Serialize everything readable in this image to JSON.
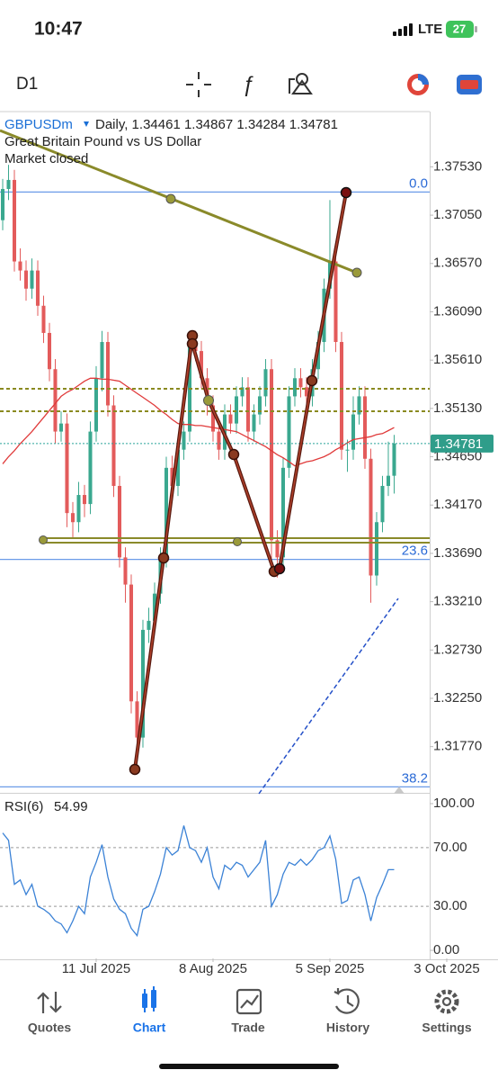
{
  "status_bar": {
    "time": "10:47",
    "network": "LTE",
    "battery": "27"
  },
  "toolbar": {
    "timeframe": "D1"
  },
  "chart_data": [
    {
      "type": "candlestick",
      "symbol": "GBPUSDm",
      "info": "Daily, 1.34461 1.34867 1.34284 1.34781",
      "description": "Great Britain Pound vs US Dollar",
      "status": "Market closed",
      "up_color": "#3aa88f",
      "down_color": "#e35b5b",
      "open": [
        1.37,
        1.3731,
        1.374,
        1.3659,
        1.365,
        1.3632,
        1.365,
        1.3615,
        1.3588,
        1.3552,
        1.349,
        1.3498,
        1.3409,
        1.34,
        1.3427,
        1.3418,
        1.349,
        1.3543,
        1.3579,
        1.3516,
        1.3436,
        1.3365,
        1.3338,
        1.3222,
        1.3186,
        1.3293,
        1.3302,
        1.3329,
        1.3365,
        1.3454,
        1.3436,
        1.3472,
        1.349,
        1.3579,
        1.357,
        1.3543,
        1.3516,
        1.349,
        1.3472,
        1.3507,
        1.3498,
        1.3525,
        1.3534,
        1.349,
        1.3507,
        1.3525,
        1.3552,
        1.3382,
        1.3365,
        1.3454,
        1.3525,
        1.3543,
        1.3534,
        1.3525,
        1.3552,
        1.3579,
        1.3632,
        1.3659,
        1.3579,
        1.3472,
        1.3472,
        1.3507,
        1.3525,
        1.3463,
        1.3347,
        1.34,
        1.3436,
        1.34461
      ],
      "high": [
        1.3741,
        1.3755,
        1.375,
        1.3672,
        1.366,
        1.3662,
        1.366,
        1.3625,
        1.3598,
        1.3562,
        1.351,
        1.3508,
        1.342,
        1.344,
        1.3437,
        1.35,
        1.3555,
        1.359,
        1.3589,
        1.3526,
        1.3446,
        1.3375,
        1.3348,
        1.3232,
        1.3303,
        1.3315,
        1.334,
        1.3375,
        1.3465,
        1.3466,
        1.3482,
        1.35,
        1.359,
        1.359,
        1.358,
        1.3553,
        1.3526,
        1.35,
        1.3517,
        1.3517,
        1.3535,
        1.3544,
        1.3544,
        1.3517,
        1.3535,
        1.3562,
        1.3562,
        1.3392,
        1.3464,
        1.3535,
        1.3553,
        1.3553,
        1.3544,
        1.3562,
        1.359,
        1.3642,
        1.372,
        1.3669,
        1.3589,
        1.3482,
        1.3525,
        1.3535,
        1.3535,
        1.3473,
        1.341,
        1.3446,
        1.348,
        1.34867
      ],
      "low": [
        1.369,
        1.372,
        1.3649,
        1.364,
        1.362,
        1.3622,
        1.3605,
        1.3578,
        1.354,
        1.3478,
        1.348,
        1.3395,
        1.3385,
        1.339,
        1.3405,
        1.3408,
        1.348,
        1.353,
        1.3505,
        1.3425,
        1.3355,
        1.332,
        1.321,
        1.316,
        1.3176,
        1.328,
        1.3292,
        1.3319,
        1.3355,
        1.3425,
        1.3426,
        1.3462,
        1.348,
        1.356,
        1.3533,
        1.3506,
        1.348,
        1.3462,
        1.3462,
        1.3488,
        1.3488,
        1.3515,
        1.348,
        1.348,
        1.3497,
        1.3515,
        1.335,
        1.3345,
        1.3355,
        1.3444,
        1.3515,
        1.3524,
        1.3515,
        1.3515,
        1.3542,
        1.3569,
        1.3622,
        1.3569,
        1.3462,
        1.345,
        1.3462,
        1.3497,
        1.3453,
        1.332,
        1.3337,
        1.339,
        1.3426,
        1.34284
      ],
      "close": [
        1.3731,
        1.374,
        1.3659,
        1.365,
        1.3632,
        1.365,
        1.3615,
        1.3588,
        1.3552,
        1.349,
        1.3498,
        1.3409,
        1.34,
        1.3427,
        1.3418,
        1.349,
        1.3543,
        1.3579,
        1.3516,
        1.3436,
        1.3365,
        1.3338,
        1.3222,
        1.3186,
        1.3293,
        1.3302,
        1.3329,
        1.3365,
        1.3454,
        1.3436,
        1.3472,
        1.349,
        1.3579,
        1.357,
        1.3543,
        1.3516,
        1.349,
        1.3472,
        1.3507,
        1.3498,
        1.3525,
        1.3534,
        1.349,
        1.3507,
        1.3525,
        1.3552,
        1.3382,
        1.3365,
        1.3454,
        1.3525,
        1.3543,
        1.3534,
        1.3525,
        1.3552,
        1.3579,
        1.3632,
        1.3659,
        1.3579,
        1.3472,
        1.3472,
        1.3507,
        1.3525,
        1.3463,
        1.3347,
        1.34,
        1.3436,
        1.34461,
        1.34781
      ],
      "ma": {
        "color": "#e03a3a",
        "values": [
          1.3458,
          1.3465,
          1.3471,
          1.3478,
          1.3484,
          1.349,
          1.3497,
          1.3504,
          1.3511,
          1.3518,
          1.3525,
          1.3529,
          1.3532,
          1.3536,
          1.354,
          1.3543,
          1.3543,
          1.3542,
          1.3542,
          1.3541,
          1.354,
          1.3536,
          1.3532,
          1.3528,
          1.3524,
          1.352,
          1.3516,
          1.3511,
          1.3507,
          1.3502,
          1.3498,
          1.3497,
          1.3497,
          1.3496,
          1.3496,
          1.3495,
          1.3494,
          1.3493,
          1.3492,
          1.3491,
          1.349,
          1.3487,
          1.3484,
          1.3481,
          1.3478,
          1.3475,
          1.3471,
          1.3467,
          1.3464,
          1.346,
          1.3456,
          1.3458,
          1.346,
          1.3461,
          1.3463,
          1.3465,
          1.3468,
          1.3472,
          1.3475,
          1.3479,
          1.3482,
          1.3483,
          1.3484,
          1.3485,
          1.3487,
          1.3488,
          1.3491,
          1.3494
        ]
      },
      "fib_levels": [
        {
          "label": "0.0",
          "price": 1.3728
        },
        {
          "label": "23.6",
          "price": 1.3363
        },
        {
          "label": "38.2",
          "price": 1.3137
        }
      ],
      "xlim": [
        -0.46,
        73.08
      ],
      "ylim": [
        1.3132,
        1.3807
      ],
      "yticks": [
        {
          "value": 1.3753,
          "label": "1.37530"
        },
        {
          "value": 1.3705,
          "label": "1.37050"
        },
        {
          "value": 1.3657,
          "label": "1.36570"
        },
        {
          "value": 1.3609,
          "label": "1.36090"
        },
        {
          "value": 1.3561,
          "label": "1.35610"
        },
        {
          "value": 1.3513,
          "label": "1.35130"
        },
        {
          "value": 1.3465,
          "label": "1.34650"
        },
        {
          "value": 1.3417,
          "label": "1.34170"
        },
        {
          "value": 1.3369,
          "label": "1.33690"
        },
        {
          "value": 1.3321,
          "label": "1.33210"
        },
        {
          "value": 1.3273,
          "label": "1.32730"
        },
        {
          "value": 1.3225,
          "label": "1.32250"
        },
        {
          "value": 1.3177,
          "label": "1.31770"
        }
      ]
    },
    {
      "type": "line",
      "title": "RSI(6)",
      "color": "#3b82d6",
      "values": [
        80,
        75,
        45,
        48,
        38,
        45,
        30,
        28,
        25,
        20,
        18,
        12,
        20,
        30,
        25,
        50,
        60,
        72,
        50,
        35,
        28,
        25,
        15,
        10,
        28,
        30,
        40,
        52,
        70,
        65,
        68,
        85,
        70,
        68,
        60,
        70,
        50,
        42,
        58,
        55,
        60,
        58,
        50,
        55,
        60,
        75,
        30,
        38,
        52,
        60,
        58,
        62,
        58,
        62,
        68,
        70,
        78,
        62,
        32,
        34,
        48,
        50,
        38,
        20,
        36,
        45,
        55,
        54.99
      ],
      "xlim": [
        -0.46,
        73.08
      ],
      "xticks": [
        {
          "value": 16,
          "label": "11 Jul 2025"
        },
        {
          "value": 36,
          "label": "8 Aug 2025"
        },
        {
          "value": 56,
          "label": "5 Sep 2025"
        },
        {
          "value": 76,
          "label": "3 Oct 2025"
        }
      ],
      "ylim": [
        -5.5,
        104.9
      ],
      "yticks": [
        {
          "value": 100,
          "label": "100.00"
        },
        {
          "value": 70,
          "label": "70.00"
        },
        {
          "value": 30,
          "label": "30.00"
        },
        {
          "value": 0,
          "label": "0.00"
        }
      ]
    }
  ],
  "nav": {
    "items": [
      "Quotes",
      "Chart",
      "Trade",
      "History",
      "Settings"
    ]
  }
}
